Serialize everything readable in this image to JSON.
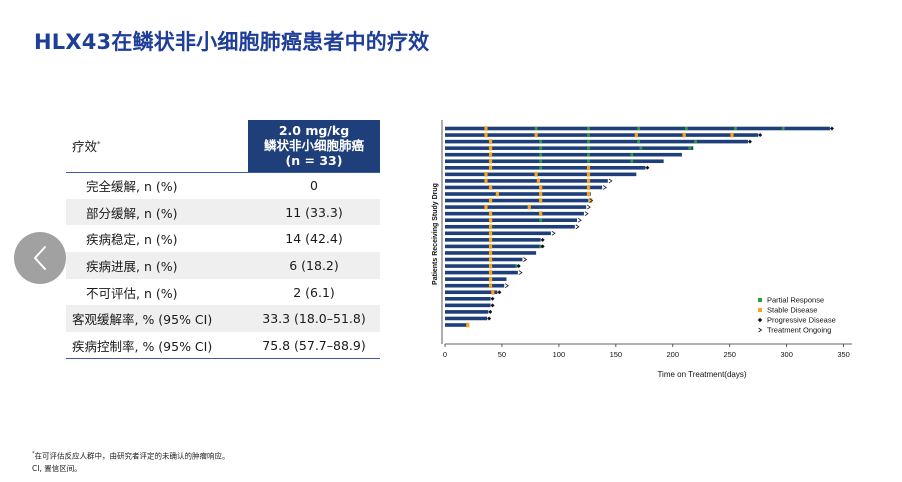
{
  "title": "HLX43在鳞状非小细胞肺癌患者中的疗效",
  "table": {
    "header_label": "疗效",
    "header_label_sup": "*",
    "header_value_lines": [
      "2.0 mg/kg",
      "鳞状非小细胞肺癌",
      "(n = 33)"
    ],
    "rows": [
      {
        "label": "完全缓解, n (%)",
        "value": "0",
        "indent": true
      },
      {
        "label": "部分缓解, n (%)",
        "value": "11 (33.3)",
        "indent": true
      },
      {
        "label": "疾病稳定, n (%)",
        "value": "14 (42.4)",
        "indent": true
      },
      {
        "label": "疾病进展, n (%)",
        "value": "6 (18.2)",
        "indent": true
      },
      {
        "label": "不可评估, n (%)",
        "value": "2 (6.1)",
        "indent": true
      },
      {
        "label": "客观缓解率, % (95% CI)",
        "value": "33.3 (18.0–51.8)",
        "indent": false
      },
      {
        "label": "疾病控制率, % (95% CI)",
        "value": "75.8 (57.7–88.9)",
        "indent": false
      }
    ]
  },
  "nav": {
    "back_icon": "chevron-left-icon"
  },
  "chart_data": {
    "type": "swimmer",
    "xlabel": "Time on Treatment(days)",
    "ylabel": "Patients Receiving Study Drug",
    "xlim": [
      0,
      350
    ],
    "xticks": [
      0,
      50,
      100,
      150,
      200,
      250,
      300,
      350
    ],
    "legend": [
      {
        "key": "pr",
        "label": "Partial Response",
        "color": "#2e9e3e",
        "marker": "square"
      },
      {
        "key": "sd",
        "label": "Stable Disease",
        "color": "#f5a623",
        "marker": "square"
      },
      {
        "key": "pd",
        "label": "Progressive Disease",
        "color": "#111111",
        "marker": "diamond"
      },
      {
        "key": "ongoing",
        "label": "Treatment Ongoing",
        "color": "#111111",
        "marker": "arrow"
      }
    ],
    "colors": {
      "bar": "#1e3f7a",
      "pr": "#2e9e3e",
      "sd": "#f5a623",
      "pd": "#111111"
    },
    "patients": [
      {
        "duration": 338,
        "ongoing": false,
        "pd": 338,
        "sd": [
          36
        ],
        "pr": [
          80,
          126,
          170,
          212,
          255,
          297
        ]
      },
      {
        "duration": 275,
        "ongoing": false,
        "pd": 275,
        "sd": [
          36,
          80,
          168,
          210,
          252
        ],
        "pr": [
          126
        ]
      },
      {
        "duration": 266,
        "ongoing": false,
        "pd": 266,
        "sd": [
          40
        ],
        "pr": [
          84,
          126,
          170,
          220
        ]
      },
      {
        "duration": 218,
        "ongoing": false,
        "pd": null,
        "sd": [
          40
        ],
        "pr": [
          84,
          126,
          172,
          215
        ]
      },
      {
        "duration": 208,
        "ongoing": false,
        "pd": null,
        "sd": [
          40
        ],
        "pr": [
          84,
          126,
          164
        ]
      },
      {
        "duration": 192,
        "ongoing": false,
        "pd": null,
        "sd": [
          40
        ],
        "pr": [
          84,
          126,
          164
        ]
      },
      {
        "duration": 176,
        "ongoing": false,
        "pd": 176,
        "sd": [
          40,
          126
        ],
        "pr": [
          84
        ]
      },
      {
        "duration": 168,
        "ongoing": false,
        "pd": null,
        "sd": [
          36,
          80,
          126
        ],
        "pr": []
      },
      {
        "duration": 143,
        "ongoing": true,
        "pd": null,
        "sd": [
          36,
          82,
          126
        ],
        "pr": []
      },
      {
        "duration": 138,
        "ongoing": true,
        "pd": null,
        "sd": [
          40,
          84,
          126
        ],
        "pr": []
      },
      {
        "duration": 128,
        "ongoing": false,
        "pd": null,
        "sd": [
          46,
          84,
          126
        ],
        "pr": []
      },
      {
        "duration": 126,
        "ongoing": true,
        "pd": null,
        "sd": [
          40,
          84,
          128
        ],
        "pr": []
      },
      {
        "duration": 124,
        "ongoing": true,
        "pd": null,
        "sd": [
          36,
          74
        ],
        "pr": []
      },
      {
        "duration": 122,
        "ongoing": true,
        "pd": null,
        "sd": [
          40,
          84
        ],
        "pr": []
      },
      {
        "duration": 116,
        "ongoing": true,
        "pd": null,
        "sd": [
          40
        ],
        "pr": [
          84
        ]
      },
      {
        "duration": 114,
        "ongoing": true,
        "pd": null,
        "sd": [
          40
        ],
        "pr": []
      },
      {
        "duration": 93,
        "ongoing": true,
        "pd": null,
        "sd": [
          40
        ],
        "pr": []
      },
      {
        "duration": 84,
        "ongoing": false,
        "pd": 84,
        "sd": [
          40
        ],
        "pr": []
      },
      {
        "duration": 84,
        "ongoing": false,
        "pd": 84,
        "sd": [
          40
        ],
        "pr": [
          84
        ]
      },
      {
        "duration": 80,
        "ongoing": false,
        "pd": null,
        "sd": [
          40
        ],
        "pr": []
      },
      {
        "duration": 68,
        "ongoing": true,
        "pd": null,
        "sd": [
          40
        ],
        "pr": []
      },
      {
        "duration": 63,
        "ongoing": false,
        "pd": 63,
        "sd": [
          40
        ],
        "pr": [
          63
        ]
      },
      {
        "duration": 64,
        "ongoing": true,
        "pd": null,
        "sd": [
          40
        ],
        "pr": []
      },
      {
        "duration": 54,
        "ongoing": false,
        "pd": null,
        "sd": [
          40
        ],
        "pr": []
      },
      {
        "duration": 52,
        "ongoing": true,
        "pd": null,
        "sd": [
          40
        ],
        "pr": []
      },
      {
        "duration": 46,
        "ongoing": false,
        "pd": 46,
        "sd": [
          42
        ],
        "pr": []
      },
      {
        "duration": 40,
        "ongoing": false,
        "pd": 40,
        "sd": [],
        "pr": []
      },
      {
        "duration": 40,
        "ongoing": false,
        "pd": 40,
        "sd": [],
        "pr": []
      },
      {
        "duration": 38,
        "ongoing": false,
        "pd": 38,
        "sd": [],
        "pr": []
      },
      {
        "duration": 37,
        "ongoing": false,
        "pd": 37,
        "sd": [],
        "pr": []
      },
      {
        "duration": 20,
        "ongoing": false,
        "pd": null,
        "sd": [
          20
        ],
        "pr": []
      }
    ]
  },
  "footnote": {
    "line1_sup": "*",
    "line1": "在可评估反应人群中，由研究者评定的未确认的肿瘤响应。",
    "line2": "CI, 置信区间。"
  }
}
